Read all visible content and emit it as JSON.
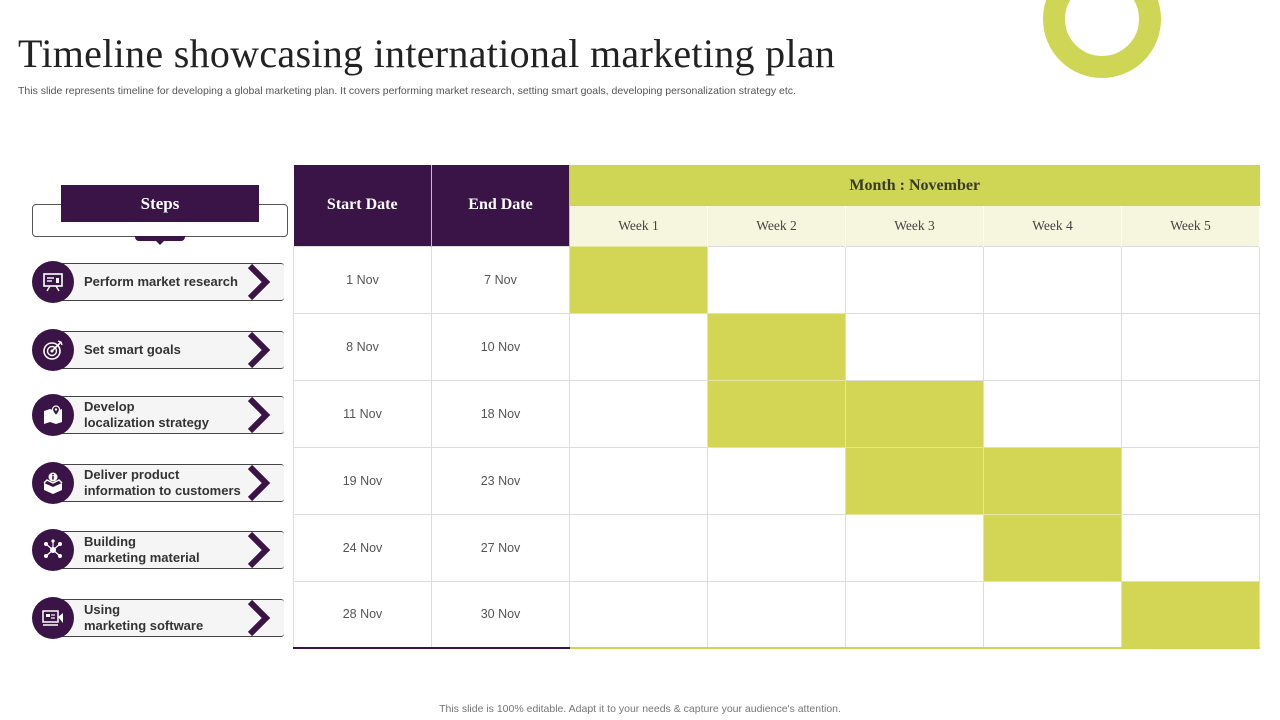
{
  "title": "Timeline showcasing international marketing plan",
  "subtitle": "This slide represents timeline  for developing a global marketing plan. It covers performing market research, setting smart goals, developing personalization strategy etc.",
  "footer": "This slide is 100% editable. Adapt it to your needs & capture your audience's attention.",
  "colors": {
    "primary": "#3a1446",
    "accent": "#cfd554",
    "accent_light": "#f6f6df"
  },
  "steps_header": "Steps",
  "steps": [
    {
      "label": "Perform market research",
      "icon": "presentation-board-icon"
    },
    {
      "label": "Set smart goals",
      "icon": "target-icon"
    },
    {
      "label": "Develop\nlocalization strategy",
      "icon": "map-pin-icon"
    },
    {
      "label": "Deliver product\ninformation to customers",
      "icon": "info-box-icon"
    },
    {
      "label": "Building\nmarketing material",
      "icon": "network-icon"
    },
    {
      "label": "Using\nmarketing software",
      "icon": "megaphone-screen-icon"
    }
  ],
  "table": {
    "start_header": "Start Date",
    "end_header": "End Date",
    "month_header": "Month : November",
    "weeks": [
      "Week 1",
      "Week 2",
      "Week 3",
      "Week 4",
      "Week 5"
    ],
    "rows": [
      {
        "start": "1 Nov",
        "end": "7 Nov",
        "active_weeks": [
          1
        ]
      },
      {
        "start": "8 Nov",
        "end": "10 Nov",
        "active_weeks": [
          2
        ]
      },
      {
        "start": "11 Nov",
        "end": "18 Nov",
        "active_weeks": [
          2,
          3
        ]
      },
      {
        "start": "19 Nov",
        "end": "23 Nov",
        "active_weeks": [
          3,
          4
        ]
      },
      {
        "start": "24 Nov",
        "end": "27 Nov",
        "active_weeks": [
          4
        ]
      },
      {
        "start": "28 Nov",
        "end": "30 Nov",
        "active_weeks": [
          5
        ]
      }
    ]
  }
}
